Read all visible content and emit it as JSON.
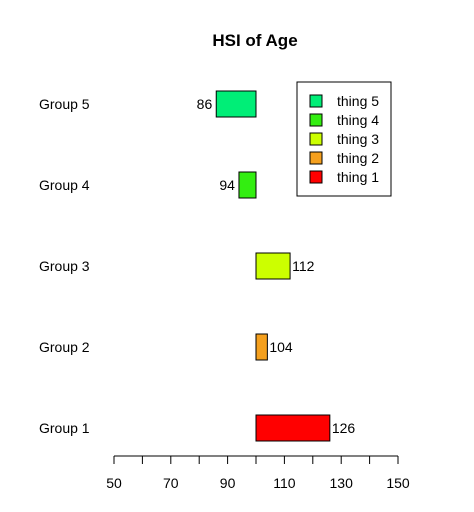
{
  "chart_data": {
    "type": "bar",
    "orientation": "horizontal",
    "baseline": 100,
    "title": "HSI of Age",
    "xlabel": "",
    "ylabel": "",
    "xlim": [
      50,
      150
    ],
    "x_ticks": [
      50,
      70,
      90,
      110,
      130,
      150
    ],
    "grid": false,
    "legend_position": "top-right",
    "categories": [
      "Group 1",
      "Group 2",
      "Group 3",
      "Group 4",
      "Group 5"
    ],
    "values": [
      126,
      104,
      112,
      94,
      86
    ],
    "colors": [
      "#FF0000",
      "#F5A01E",
      "#CCFF00",
      "#33EE11",
      "#00EE77"
    ],
    "legend": [
      {
        "label": "thing 5",
        "color": "#00EE77"
      },
      {
        "label": "thing 4",
        "color": "#33EE11"
      },
      {
        "label": "thing 3",
        "color": "#CCFF00"
      },
      {
        "label": "thing 2",
        "color": "#F5A01E"
      },
      {
        "label": "thing 1",
        "color": "#FF0000"
      }
    ]
  }
}
